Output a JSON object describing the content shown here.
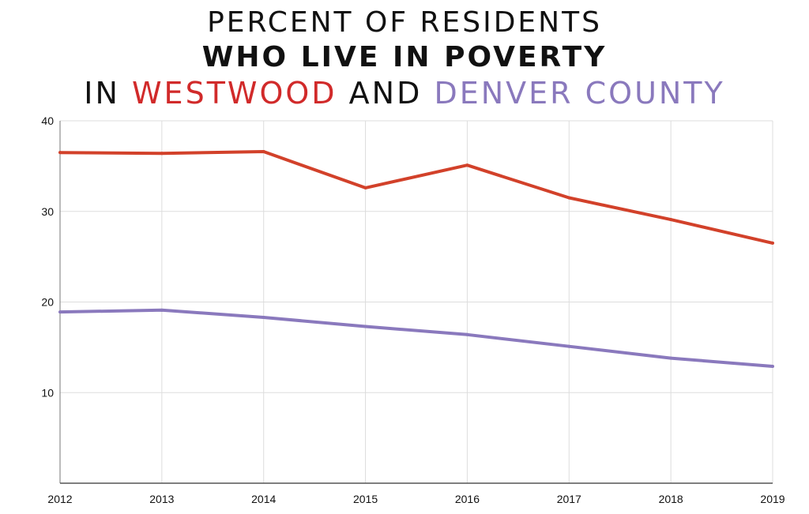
{
  "title": {
    "line1": "PERCENT OF RESIDENTS",
    "line2": "WHO LIVE IN POVERTY",
    "line3_prefix": "IN",
    "line3_westwood": "WESTWOOD",
    "line3_and": "AND",
    "line3_denver": "DENVER COUNTY"
  },
  "colors": {
    "westwood": "#d2412a",
    "denver": "#8a79bd",
    "grid": "#dddddd"
  },
  "chart_data": {
    "type": "line",
    "title": "PERCENT OF RESIDENTS WHO LIVE IN POVERTY IN WESTWOOD AND DENVER COUNTY",
    "xlabel": "",
    "ylabel": "",
    "x": [
      "2012",
      "2013",
      "2014",
      "2015",
      "2016",
      "2017",
      "2018",
      "2019"
    ],
    "ylim": [
      0,
      40
    ],
    "yticks": [
      10,
      20,
      30,
      40
    ],
    "grid": true,
    "legend": "none",
    "series": [
      {
        "name": "Westwood",
        "color": "#d2412a",
        "values": [
          36.5,
          36.4,
          36.6,
          32.6,
          35.1,
          31.5,
          29.1,
          26.5
        ]
      },
      {
        "name": "Denver County",
        "color": "#8a79bd",
        "values": [
          18.9,
          19.1,
          18.3,
          17.3,
          16.4,
          15.1,
          13.8,
          12.9
        ]
      }
    ]
  }
}
